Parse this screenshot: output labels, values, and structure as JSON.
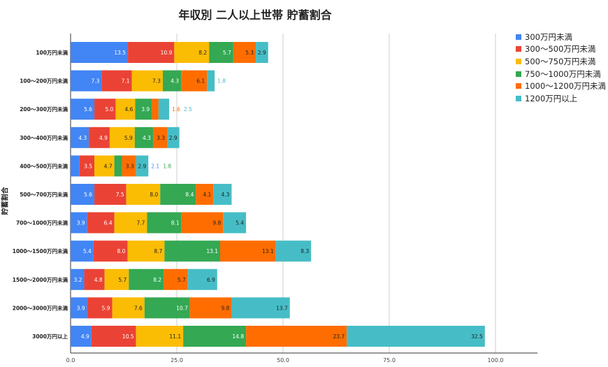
{
  "chart_data": {
    "type": "bar",
    "orientation": "horizontal",
    "stacked": true,
    "title": "年収別 二人以上世帯 貯蓄割合",
    "ylabel": "貯蓄割合",
    "xlabel": "",
    "xlim": [
      0,
      100
    ],
    "xticks": [
      "0.0",
      "25.0",
      "50.0",
      "75.0",
      "100.0"
    ],
    "grid": true,
    "legend_position": "right",
    "categories": [
      "100万円未満",
      "100〜200万円未満",
      "200〜300万円未満",
      "300〜400万円未満",
      "400〜500万円未満",
      "500〜700万円未満",
      "700〜1000万円未満",
      "1000〜1500万円未満",
      "1500〜2000万円未満",
      "2000〜3000万円未満",
      "3000万円以上"
    ],
    "series": [
      {
        "name": "300万円未満",
        "color": "#4285F4",
        "values": [
          13.5,
          7.3,
          5.6,
          4.3,
          2.1,
          5.6,
          3.9,
          5.4,
          3.2,
          3.9,
          4.9
        ]
      },
      {
        "name": "300〜500万円未満",
        "color": "#EA4335",
        "values": [
          10.9,
          7.1,
          5.0,
          4.9,
          3.5,
          7.5,
          6.4,
          8.0,
          4.8,
          5.9,
          10.5
        ]
      },
      {
        "name": "500〜750万円未満",
        "color": "#FBBC04",
        "values": [
          8.2,
          7.3,
          4.6,
          5.9,
          4.7,
          8.0,
          7.7,
          8.7,
          5.7,
          7.6,
          11.1
        ]
      },
      {
        "name": "750〜1000万円未満",
        "color": "#34A853",
        "values": [
          5.7,
          4.3,
          3.9,
          4.3,
          1.8,
          8.4,
          8.1,
          13.1,
          8.2,
          10.7,
          14.8
        ]
      },
      {
        "name": "1000〜1200万円未満",
        "color": "#FF6D01",
        "values": [
          5.3,
          6.1,
          1.6,
          3.3,
          3.3,
          4.1,
          9.8,
          13.1,
          5.7,
          9.8,
          23.7
        ]
      },
      {
        "name": "1200万円以上",
        "color": "#46BDC6",
        "values": [
          2.9,
          1.8,
          2.5,
          2.9,
          2.9,
          4.3,
          5.4,
          8.3,
          6.9,
          13.7,
          32.5
        ]
      }
    ]
  }
}
